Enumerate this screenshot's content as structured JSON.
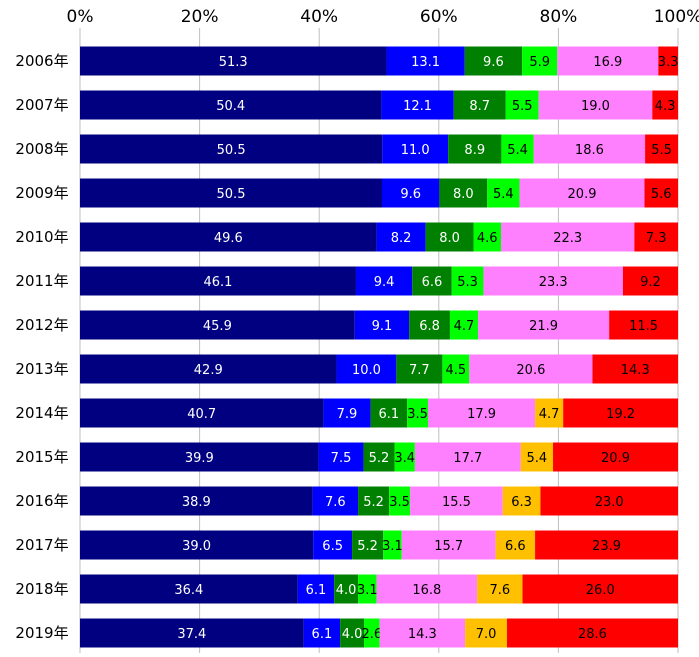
{
  "chart_data": {
    "type": "bar",
    "orientation": "horizontal",
    "stacked": true,
    "normalized_percent": true,
    "categories": [
      "2006年",
      "2007年",
      "2008年",
      "2009年",
      "2010年",
      "2011年",
      "2012年",
      "2013年",
      "2014年",
      "2015年",
      "2016年",
      "2017年",
      "2018年",
      "2019年"
    ],
    "x_ticks": [
      "0%",
      "20%",
      "40%",
      "60%",
      "80%",
      "100%"
    ],
    "xlim": [
      0,
      100
    ],
    "grid": true,
    "legend": "none",
    "series": [
      {
        "color": "#000080",
        "label_color": "#ffffff",
        "values": [
          51.3,
          50.4,
          50.5,
          50.5,
          49.6,
          46.1,
          45.9,
          42.9,
          40.7,
          39.9,
          38.9,
          39.0,
          36.4,
          37.4
        ]
      },
      {
        "color": "#0000ff",
        "label_color": "#ffffff",
        "values": [
          13.1,
          12.1,
          11.0,
          9.6,
          8.2,
          9.4,
          9.1,
          10.0,
          7.9,
          7.5,
          7.6,
          6.5,
          6.1,
          6.1
        ]
      },
      {
        "color": "#008000",
        "label_color": "#ffffff",
        "values": [
          9.6,
          8.7,
          8.9,
          8.0,
          8.0,
          6.6,
          6.8,
          7.7,
          6.1,
          5.2,
          5.2,
          5.2,
          4.0,
          4.0
        ]
      },
      {
        "color": "#00ff00",
        "label_color": "#000000",
        "values": [
          5.9,
          5.5,
          5.4,
          5.4,
          4.6,
          5.3,
          4.7,
          4.5,
          3.5,
          3.4,
          3.5,
          3.1,
          3.1,
          2.6
        ]
      },
      {
        "color": "#ff80ff",
        "label_color": "#000000",
        "values": [
          16.9,
          19.0,
          18.6,
          20.9,
          22.3,
          23.3,
          21.9,
          20.6,
          17.9,
          17.7,
          15.5,
          15.7,
          16.8,
          14.3
        ]
      },
      {
        "color": "#ffc000",
        "label_color": "#000000",
        "values": [
          null,
          null,
          null,
          null,
          null,
          null,
          null,
          null,
          4.7,
          5.4,
          6.3,
          6.6,
          7.6,
          7.0
        ]
      },
      {
        "color": "#ff0000",
        "label_color": "#000000",
        "values": [
          3.3,
          4.3,
          5.5,
          5.6,
          7.3,
          9.2,
          11.5,
          14.3,
          19.2,
          20.9,
          23.0,
          23.9,
          26.0,
          28.6
        ]
      }
    ]
  }
}
